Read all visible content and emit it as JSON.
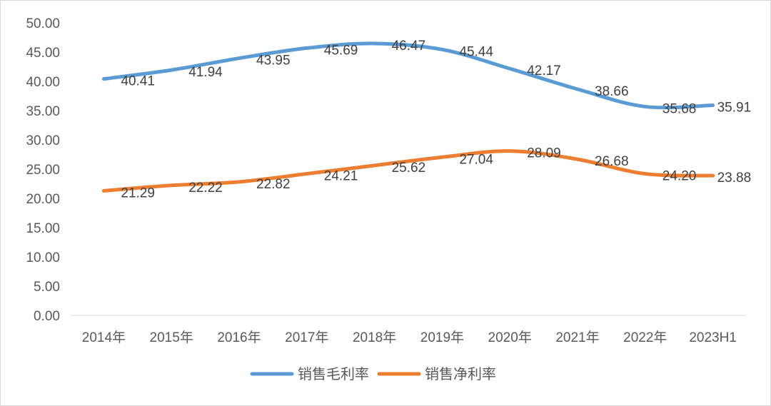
{
  "chart_data": {
    "type": "line",
    "title": "",
    "xlabel": "",
    "ylabel": "",
    "categories": [
      "2014年",
      "2015年",
      "2016年",
      "2017年",
      "2018年",
      "2019年",
      "2020年",
      "2021年",
      "2022年",
      "2023H1"
    ],
    "ylim": [
      0,
      50
    ],
    "yticks": [
      "0.00",
      "5.00",
      "10.00",
      "15.00",
      "20.00",
      "25.00",
      "30.00",
      "35.00",
      "40.00",
      "45.00",
      "50.00"
    ],
    "grid": false,
    "legend_position": "bottom",
    "series": [
      {
        "name": "销售毛利率",
        "color": "#5b9bd5",
        "values": [
          40.41,
          41.94,
          43.95,
          45.69,
          46.47,
          45.44,
          42.17,
          38.66,
          35.68,
          35.91
        ]
      },
      {
        "name": "销售净利率",
        "color": "#ed7d31",
        "values": [
          21.29,
          22.22,
          22.82,
          24.21,
          25.62,
          27.04,
          28.09,
          26.68,
          24.2,
          23.88
        ]
      }
    ]
  }
}
